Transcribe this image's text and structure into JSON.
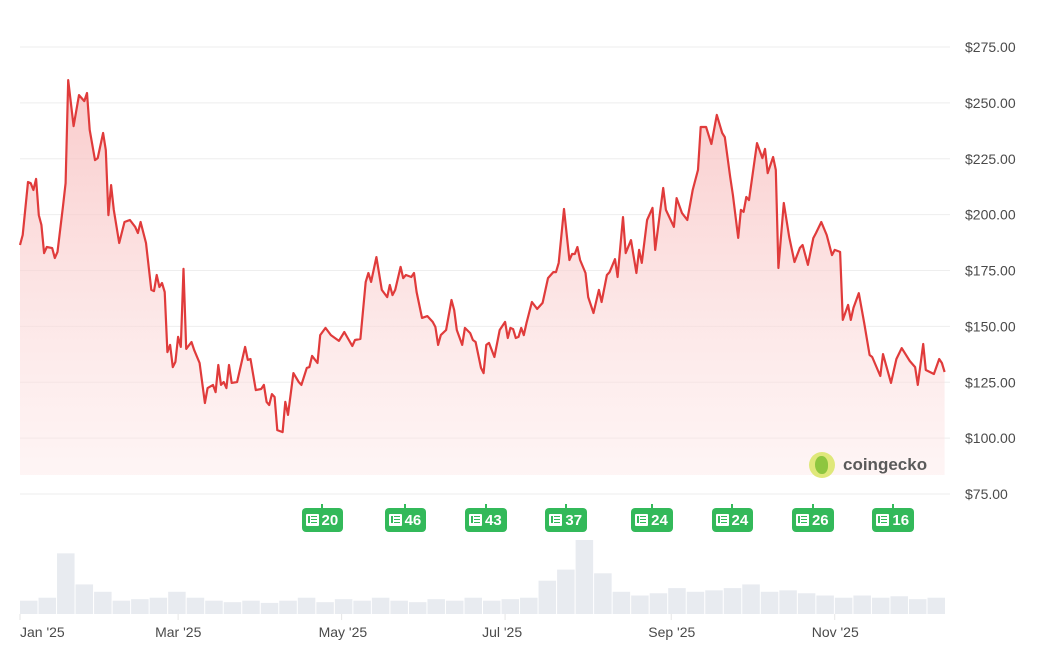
{
  "chart_data": {
    "type": "area",
    "title": "",
    "xlabel": "",
    "ylabel": "",
    "ylim": [
      75,
      275
    ],
    "y_ticks": [
      "$75.00",
      "$100.00",
      "$125.00",
      "$150.00",
      "$175.00",
      "$200.00",
      "$225.00",
      "$250.00",
      "$275.00"
    ],
    "y_tick_values": [
      75,
      100,
      125,
      150,
      175,
      200,
      225,
      250,
      275
    ],
    "x_ticks": [
      {
        "label": "Jan '25",
        "date": "2025-01-01"
      },
      {
        "label": "Mar '25",
        "date": "2025-03-01"
      },
      {
        "label": "May '25",
        "date": "2025-05-01"
      },
      {
        "label": "Jul '25",
        "date": "2025-07-01"
      },
      {
        "label": "Sep '25",
        "date": "2025-09-01"
      },
      {
        "label": "Nov '25",
        "date": "2025-11-01"
      }
    ],
    "xlim": [
      "2025-01-01",
      "2025-12-12"
    ],
    "grid": true,
    "y_axis_position": "right",
    "line_color": "#e03b3b",
    "fill_color": "#f8c9c9",
    "series": [
      {
        "points": [
          [
            "2025-01-01",
            186.4
          ],
          [
            "2025-01-02",
            190.9
          ],
          [
            "2025-01-04",
            214.6
          ],
          [
            "2025-01-05",
            214.1
          ],
          [
            "2025-01-06",
            211.0
          ],
          [
            "2025-01-07",
            216.0
          ],
          [
            "2025-01-08",
            199.8
          ],
          [
            "2025-01-09",
            195.4
          ],
          [
            "2025-01-10",
            182.8
          ],
          [
            "2025-01-11",
            185.5
          ],
          [
            "2025-01-13",
            185.0
          ],
          [
            "2025-01-14",
            180.6
          ],
          [
            "2025-01-15",
            183.3
          ],
          [
            "2025-01-17",
            203.4
          ],
          [
            "2025-01-18",
            214.1
          ],
          [
            "2025-01-19",
            260.2
          ],
          [
            "2025-01-21",
            239.6
          ],
          [
            "2025-01-23",
            253.5
          ],
          [
            "2025-01-25",
            250.8
          ],
          [
            "2025-01-26",
            254.4
          ],
          [
            "2025-01-27",
            237.9
          ],
          [
            "2025-01-29",
            224.4
          ],
          [
            "2025-01-30",
            225.3
          ],
          [
            "2025-02-01",
            236.5
          ],
          [
            "2025-02-02",
            228.9
          ],
          [
            "2025-02-03",
            199.8
          ],
          [
            "2025-02-04",
            213.2
          ],
          [
            "2025-02-05",
            202.1
          ],
          [
            "2025-02-07",
            187.3
          ],
          [
            "2025-02-09",
            196.7
          ],
          [
            "2025-02-11",
            197.6
          ],
          [
            "2025-02-13",
            194.5
          ],
          [
            "2025-02-14",
            191.8
          ],
          [
            "2025-02-15",
            196.7
          ],
          [
            "2025-02-17",
            187.3
          ],
          [
            "2025-02-19",
            166.3
          ],
          [
            "2025-02-20",
            165.8
          ],
          [
            "2025-02-21",
            173.0
          ],
          [
            "2025-02-22",
            167.6
          ],
          [
            "2025-02-23",
            169.4
          ],
          [
            "2025-02-24",
            165.4
          ],
          [
            "2025-02-25",
            138.5
          ],
          [
            "2025-02-26",
            141.7
          ],
          [
            "2025-02-27",
            131.8
          ],
          [
            "2025-02-28",
            134.1
          ],
          [
            "2025-03-01",
            145.3
          ],
          [
            "2025-03-02",
            140.8
          ],
          [
            "2025-03-03",
            175.7
          ],
          [
            "2025-03-04",
            139.9
          ],
          [
            "2025-03-06",
            143.0
          ],
          [
            "2025-03-07",
            139.4
          ],
          [
            "2025-03-09",
            133.6
          ],
          [
            "2025-03-11",
            115.7
          ],
          [
            "2025-03-12",
            122.4
          ],
          [
            "2025-03-14",
            123.8
          ],
          [
            "2025-03-15",
            120.6
          ],
          [
            "2025-03-16",
            132.7
          ],
          [
            "2025-03-17",
            123.8
          ],
          [
            "2025-03-18",
            125.1
          ],
          [
            "2025-03-19",
            122.4
          ],
          [
            "2025-03-20",
            132.7
          ],
          [
            "2025-03-21",
            124.7
          ],
          [
            "2025-03-23",
            125.1
          ],
          [
            "2025-03-26",
            140.8
          ],
          [
            "2025-03-27",
            135.0
          ],
          [
            "2025-03-28",
            135.4
          ],
          [
            "2025-03-30",
            121.5
          ],
          [
            "2025-04-01",
            122.0
          ],
          [
            "2025-04-02",
            123.8
          ],
          [
            "2025-04-03",
            116.2
          ],
          [
            "2025-04-04",
            114.8
          ],
          [
            "2025-04-05",
            119.7
          ],
          [
            "2025-04-06",
            118.4
          ],
          [
            "2025-04-07",
            103.6
          ],
          [
            "2025-04-09",
            102.7
          ],
          [
            "2025-04-10",
            116.2
          ],
          [
            "2025-04-11",
            110.4
          ],
          [
            "2025-04-13",
            129.1
          ],
          [
            "2025-04-15",
            125.1
          ],
          [
            "2025-04-16",
            123.8
          ],
          [
            "2025-04-18",
            131.4
          ],
          [
            "2025-04-19",
            131.8
          ],
          [
            "2025-04-20",
            136.8
          ],
          [
            "2025-04-22",
            133.6
          ],
          [
            "2025-04-23",
            146.1
          ],
          [
            "2025-04-25",
            149.3
          ],
          [
            "2025-04-27",
            146.1
          ],
          [
            "2025-04-30",
            143.5
          ],
          [
            "2025-05-02",
            147.5
          ],
          [
            "2025-05-05",
            141.2
          ],
          [
            "2025-05-06",
            143.9
          ],
          [
            "2025-05-08",
            144.4
          ],
          [
            "2025-05-10",
            169.9
          ],
          [
            "2025-05-11",
            173.9
          ],
          [
            "2025-05-12",
            169.9
          ],
          [
            "2025-05-14",
            181.0
          ],
          [
            "2025-05-16",
            166.3
          ],
          [
            "2025-05-18",
            163.1
          ],
          [
            "2025-05-19",
            168.5
          ],
          [
            "2025-05-20",
            164.0
          ],
          [
            "2025-05-21",
            166.3
          ],
          [
            "2025-05-23",
            176.6
          ],
          [
            "2025-05-24",
            171.6
          ],
          [
            "2025-05-25",
            173.0
          ],
          [
            "2025-05-27",
            172.1
          ],
          [
            "2025-05-28",
            173.9
          ],
          [
            "2025-05-29",
            165.4
          ],
          [
            "2025-05-31",
            153.8
          ],
          [
            "2025-06-02",
            154.6
          ],
          [
            "2025-06-04",
            152.0
          ],
          [
            "2025-06-05",
            149.7
          ],
          [
            "2025-06-06",
            141.7
          ],
          [
            "2025-06-07",
            146.1
          ],
          [
            "2025-06-09",
            148.4
          ],
          [
            "2025-06-11",
            161.8
          ],
          [
            "2025-06-12",
            157.3
          ],
          [
            "2025-06-13",
            148.4
          ],
          [
            "2025-06-15",
            141.7
          ],
          [
            "2025-06-16",
            149.3
          ],
          [
            "2025-06-18",
            147.0
          ],
          [
            "2025-06-19",
            143.9
          ],
          [
            "2025-06-20",
            143.0
          ],
          [
            "2025-06-22",
            131.4
          ],
          [
            "2025-06-23",
            129.1
          ],
          [
            "2025-06-24",
            141.7
          ],
          [
            "2025-06-25",
            142.6
          ],
          [
            "2025-06-27",
            136.3
          ],
          [
            "2025-06-29",
            148.4
          ],
          [
            "2025-07-01",
            152.0
          ],
          [
            "2025-07-02",
            144.8
          ],
          [
            "2025-07-03",
            149.3
          ],
          [
            "2025-07-04",
            148.8
          ],
          [
            "2025-07-05",
            144.8
          ],
          [
            "2025-07-06",
            145.3
          ],
          [
            "2025-07-07",
            149.3
          ],
          [
            "2025-07-08",
            146.1
          ],
          [
            "2025-07-09",
            151.5
          ],
          [
            "2025-07-11",
            160.9
          ],
          [
            "2025-07-13",
            157.8
          ],
          [
            "2025-07-15",
            160.5
          ],
          [
            "2025-07-17",
            171.6
          ],
          [
            "2025-07-19",
            174.3
          ],
          [
            "2025-07-20",
            174.3
          ],
          [
            "2025-07-21",
            178.4
          ],
          [
            "2025-07-23",
            202.5
          ],
          [
            "2025-07-25",
            179.7
          ],
          [
            "2025-07-26",
            182.4
          ],
          [
            "2025-07-27",
            182.4
          ],
          [
            "2025-07-28",
            185.5
          ],
          [
            "2025-07-29",
            179.7
          ],
          [
            "2025-07-31",
            173.9
          ],
          [
            "2025-08-01",
            163.1
          ],
          [
            "2025-08-03",
            156.0
          ],
          [
            "2025-08-05",
            166.3
          ],
          [
            "2025-08-06",
            160.9
          ],
          [
            "2025-08-08",
            173.0
          ],
          [
            "2025-08-09",
            174.3
          ],
          [
            "2025-08-11",
            180.1
          ],
          [
            "2025-08-12",
            172.1
          ],
          [
            "2025-08-14",
            198.9
          ],
          [
            "2025-08-15",
            182.8
          ],
          [
            "2025-08-17",
            188.6
          ],
          [
            "2025-08-19",
            173.9
          ],
          [
            "2025-08-20",
            184.2
          ],
          [
            "2025-08-21",
            178.4
          ],
          [
            "2025-08-23",
            197.6
          ],
          [
            "2025-08-25",
            203.0
          ],
          [
            "2025-08-26",
            184.2
          ],
          [
            "2025-08-29",
            211.9
          ],
          [
            "2025-08-30",
            202.1
          ],
          [
            "2025-09-02",
            194.5
          ],
          [
            "2025-09-03",
            207.4
          ],
          [
            "2025-09-05",
            200.7
          ],
          [
            "2025-09-07",
            197.6
          ],
          [
            "2025-09-09",
            211.0
          ],
          [
            "2025-09-11",
            220.0
          ],
          [
            "2025-09-12",
            239.2
          ],
          [
            "2025-09-14",
            239.2
          ],
          [
            "2025-09-16",
            231.6
          ],
          [
            "2025-09-18",
            244.6
          ],
          [
            "2025-09-20",
            236.5
          ],
          [
            "2025-09-21",
            234.7
          ],
          [
            "2025-09-23",
            216.8
          ],
          [
            "2025-09-24",
            208.8
          ],
          [
            "2025-09-26",
            189.6
          ],
          [
            "2025-09-27",
            202.1
          ],
          [
            "2025-09-28",
            201.2
          ],
          [
            "2025-09-29",
            207.9
          ],
          [
            "2025-09-30",
            206.5
          ],
          [
            "2025-10-03",
            232.0
          ],
          [
            "2025-10-05",
            225.3
          ],
          [
            "2025-10-06",
            229.4
          ],
          [
            "2025-10-07",
            218.6
          ],
          [
            "2025-10-09",
            225.8
          ],
          [
            "2025-10-10",
            220.0
          ],
          [
            "2025-10-11",
            176.1
          ],
          [
            "2025-10-13",
            205.2
          ],
          [
            "2025-10-15",
            190.0
          ],
          [
            "2025-10-17",
            178.8
          ],
          [
            "2025-10-19",
            185.1
          ],
          [
            "2025-10-20",
            186.4
          ],
          [
            "2025-10-22",
            177.5
          ],
          [
            "2025-10-24",
            189.5
          ],
          [
            "2025-10-25",
            191.8
          ],
          [
            "2025-10-27",
            196.7
          ],
          [
            "2025-10-29",
            190.9
          ],
          [
            "2025-10-31",
            181.9
          ],
          [
            "2025-11-01",
            184.2
          ],
          [
            "2025-11-03",
            183.3
          ],
          [
            "2025-11-04",
            152.9
          ],
          [
            "2025-11-06",
            159.6
          ],
          [
            "2025-11-07",
            152.9
          ],
          [
            "2025-11-08",
            158.3
          ],
          [
            "2025-11-10",
            164.9
          ],
          [
            "2025-11-12",
            151.5
          ],
          [
            "2025-11-14",
            137.2
          ],
          [
            "2025-11-15",
            136.3
          ],
          [
            "2025-11-18",
            127.8
          ],
          [
            "2025-11-19",
            137.6
          ],
          [
            "2025-11-22",
            124.7
          ],
          [
            "2025-11-24",
            135.4
          ],
          [
            "2025-11-26",
            140.3
          ],
          [
            "2025-11-29",
            134.5
          ],
          [
            "2025-12-01",
            131.8
          ],
          [
            "2025-12-02",
            123.8
          ],
          [
            "2025-12-04",
            142.1
          ],
          [
            "2025-12-05",
            130.5
          ],
          [
            "2025-12-08",
            128.7
          ],
          [
            "2025-12-10",
            135.4
          ],
          [
            "2025-12-11",
            133.6
          ],
          [
            "2025-12-12",
            129.6
          ]
        ]
      }
    ],
    "volume_relative_weekly": [
      18,
      22,
      82,
      40,
      30,
      18,
      20,
      22,
      30,
      22,
      18,
      16,
      18,
      15,
      18,
      22,
      16,
      20,
      18,
      22,
      18,
      16,
      20,
      18,
      22,
      18,
      20,
      22,
      45,
      60,
      100,
      55,
      30,
      25,
      28,
      35,
      30,
      32,
      35,
      40,
      30,
      32,
      28,
      25,
      22,
      25,
      22,
      24,
      20,
      22
    ],
    "volume_color": "#e8ebf0",
    "news_markers": [
      {
        "date": "2025-04-25",
        "count": "20"
      },
      {
        "date": "2025-05-26",
        "count": "46"
      },
      {
        "date": "2025-06-25",
        "count": "43"
      },
      {
        "date": "2025-07-25",
        "count": "37"
      },
      {
        "date": "2025-08-26",
        "count": "24"
      },
      {
        "date": "2025-09-25",
        "count": "24"
      },
      {
        "date": "2025-10-25",
        "count": "26"
      },
      {
        "date": "2025-11-24",
        "count": "16"
      }
    ],
    "news_badge_color": "#33b95a",
    "news_icon": "newspaper-icon"
  },
  "watermark": {
    "text": "coingecko",
    "icon": "gecko-logo-icon"
  }
}
